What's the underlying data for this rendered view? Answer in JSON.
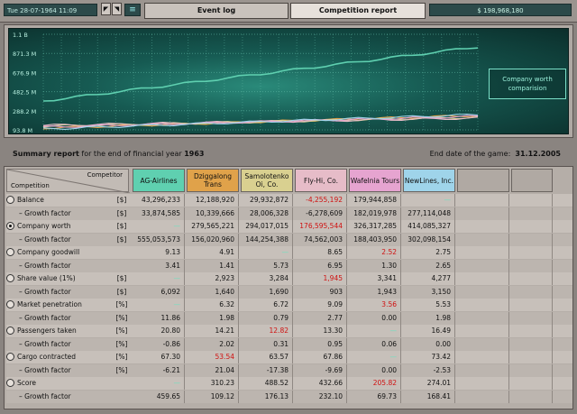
{
  "topbar": {
    "date": "Tue 28-07-1964 11:09",
    "tab_event_log": "Event log",
    "tab_competition": "Competition report",
    "money": "$ 198,968,180"
  },
  "chart": {
    "y_ticks": [
      "1.1 B",
      "871.3 M",
      "676.9 M",
      "482.5 M",
      "288.2 M",
      "93.8 M"
    ],
    "legend_label": "Company worth comparision"
  },
  "summary": {
    "label_bold": "Summary report",
    "label_rest": " for the end of financial year ",
    "year": "1963",
    "end_label": "End date of the game:",
    "end_date": "31.12.2005"
  },
  "table": {
    "corner_competitor": "Competitor",
    "corner_competition": "Competition",
    "competitors": [
      {
        "name": "AG-Airlines",
        "color": "#5fd0b0"
      },
      {
        "name": "Dziggalong Trans",
        "color": "#e0a24a"
      },
      {
        "name": "Samolotenko Oi, Co.",
        "color": "#d9d090"
      },
      {
        "name": "Fly-Hi, Co.",
        "color": "#e6bcc8"
      },
      {
        "name": "Wafelnia Tours",
        "color": "#e6a4d0"
      },
      {
        "name": "NewLines, Inc.",
        "color": "#9fd4ea"
      }
    ],
    "rows": [
      {
        "label": "Balance",
        "unit": "[$]",
        "type": "main",
        "radio": "off",
        "values": [
          "43,296,233",
          "12,188,920",
          "29,932,872",
          "-4,255,192",
          "179,944,858",
          "—"
        ],
        "flags": [
          "",
          "",
          "",
          "red",
          "",
          "hl"
        ]
      },
      {
        "label": "– Growth factor",
        "unit": "[$]",
        "type": "sub",
        "values": [
          "33,874,585",
          "10,339,666",
          "28,006,328",
          "-6,278,609",
          "182,019,978",
          "277,114,048"
        ],
        "flags": [
          "",
          "",
          "",
          "",
          "",
          ""
        ]
      },
      {
        "label": "Company worth",
        "unit": "[$]",
        "type": "main",
        "radio": "on",
        "values": [
          "—",
          "279,565,221",
          "294,017,015",
          "176,595,544",
          "326,317,285",
          "414,085,327"
        ],
        "flags": [
          "hl",
          "",
          "",
          "red",
          "",
          ""
        ]
      },
      {
        "label": "– Growth factor",
        "unit": "[$]",
        "type": "sub",
        "values": [
          "555,053,573",
          "156,020,960",
          "144,254,388",
          "74,562,003",
          "188,403,950",
          "302,098,154"
        ],
        "flags": [
          "",
          "",
          "",
          "",
          "",
          ""
        ]
      },
      {
        "label": "Company goodwill",
        "unit": "",
        "type": "main",
        "radio": "off",
        "values": [
          "9.13",
          "4.91",
          "—",
          "8.65",
          "2.52",
          "2.75"
        ],
        "flags": [
          "",
          "",
          "hl",
          "",
          "red",
          ""
        ]
      },
      {
        "label": "– Growth factor",
        "unit": "",
        "type": "sub",
        "values": [
          "3.41",
          "1.41",
          "5.73",
          "6.95",
          "1.30",
          "2.65"
        ],
        "flags": [
          "",
          "",
          "",
          "",
          "",
          ""
        ]
      },
      {
        "label": "Share value (1%)",
        "unit": "[$]",
        "type": "main",
        "radio": "off",
        "values": [
          "—",
          "2,923",
          "3,284",
          "1,945",
          "3,341",
          "4,277"
        ],
        "flags": [
          "hl",
          "",
          "",
          "red",
          "",
          ""
        ]
      },
      {
        "label": "– Growth factor",
        "unit": "[$]",
        "type": "sub",
        "values": [
          "6,092",
          "1,640",
          "1,690",
          "903",
          "1,943",
          "3,150"
        ],
        "flags": [
          "",
          "",
          "",
          "",
          "",
          ""
        ]
      },
      {
        "label": "Market penetration",
        "unit": "[%]",
        "type": "main",
        "radio": "off",
        "values": [
          "—",
          "6.32",
          "6.72",
          "9.09",
          "3.56",
          "5.53"
        ],
        "flags": [
          "hl",
          "",
          "",
          "",
          "red",
          ""
        ]
      },
      {
        "label": "– Growth factor",
        "unit": "[%]",
        "type": "sub",
        "values": [
          "11.86",
          "1.98",
          "0.79",
          "2.77",
          "0.00",
          "1.98"
        ],
        "flags": [
          "",
          "",
          "",
          "",
          "",
          ""
        ]
      },
      {
        "label": "Passengers taken",
        "unit": "[%]",
        "type": "main",
        "radio": "off",
        "values": [
          "20.80",
          "14.21",
          "12.82",
          "13.30",
          "—",
          "16.49"
        ],
        "flags": [
          "",
          "",
          "red",
          "",
          "hl",
          ""
        ]
      },
      {
        "label": "– Growth factor",
        "unit": "[%]",
        "type": "sub",
        "values": [
          "-0.86",
          "2.02",
          "0.31",
          "0.95",
          "0.06",
          "0.00"
        ],
        "flags": [
          "",
          "",
          "",
          "",
          "",
          ""
        ]
      },
      {
        "label": "Cargo contracted",
        "unit": "[%]",
        "type": "main",
        "radio": "off",
        "values": [
          "67.30",
          "53.54",
          "63.57",
          "67.86",
          "—",
          "73.42"
        ],
        "flags": [
          "",
          "red",
          "",
          "",
          "hl",
          ""
        ]
      },
      {
        "label": "– Growth factor",
        "unit": "[%]",
        "type": "sub",
        "values": [
          "-6.21",
          "21.04",
          "-17.38",
          "-9.69",
          "0.00",
          "-2.53"
        ],
        "flags": [
          "",
          "",
          "",
          "",
          "",
          ""
        ]
      },
      {
        "label": "Score",
        "unit": "",
        "type": "main",
        "radio": "off",
        "values": [
          "—",
          "310.23",
          "488.52",
          "432.66",
          "205.82",
          "274.01"
        ],
        "flags": [
          "hl",
          "",
          "",
          "",
          "red",
          ""
        ]
      },
      {
        "label": "– Growth factor",
        "unit": "",
        "type": "sub",
        "values": [
          "459.65",
          "109.12",
          "176.13",
          "232.10",
          "69.73",
          "168.41"
        ],
        "flags": [
          "",
          "",
          "",
          "",
          "",
          ""
        ]
      }
    ]
  }
}
